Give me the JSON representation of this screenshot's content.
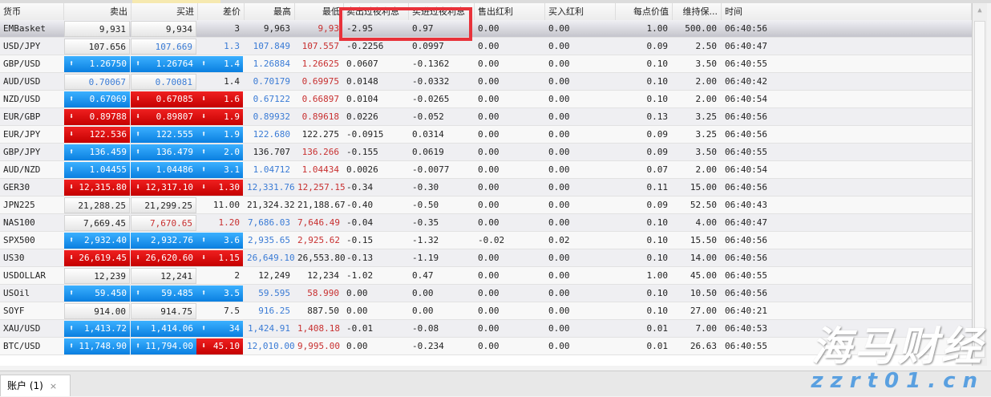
{
  "columns": [
    "货币",
    "卖出",
    "买进",
    "差价",
    "最高",
    "最低",
    "卖出过夜利息",
    "买进过夜利息",
    "售出红利",
    "买入红利",
    "每点价值",
    "维持保...",
    "时间"
  ],
  "rows": [
    [
      "EMBasket",
      [
        "9,931",
        "n"
      ],
      [
        "9,934",
        "n"
      ],
      [
        "3",
        "k"
      ],
      [
        "9,963",
        "k"
      ],
      [
        "9,93",
        "r"
      ],
      "-2.95",
      "0.97",
      "0.00",
      "0.00",
      "1.00",
      "500.00",
      "06:40:56"
    ],
    [
      "USD/JPY",
      [
        "107.656",
        "n"
      ],
      [
        "107.669",
        "nb"
      ],
      [
        "1.3",
        "b"
      ],
      [
        "107.849",
        "b"
      ],
      [
        "107.557",
        "r"
      ],
      "-0.2256",
      "0.0997",
      "0.00",
      "0.00",
      "0.09",
      "2.50",
      "06:40:47"
    ],
    [
      "GBP/USD",
      [
        "1.26750",
        "u"
      ],
      [
        "1.26764",
        "u"
      ],
      [
        "1.4",
        "u"
      ],
      [
        "1.26884",
        "b"
      ],
      [
        "1.26625",
        "r"
      ],
      "0.0607",
      "-0.1362",
      "0.00",
      "0.00",
      "0.10",
      "3.50",
      "06:40:55"
    ],
    [
      "AUD/USD",
      [
        "0.70067",
        "nb"
      ],
      [
        "0.70081",
        "nb"
      ],
      [
        "1.4",
        "k"
      ],
      [
        "0.70179",
        "b"
      ],
      [
        "0.69975",
        "r"
      ],
      "0.0148",
      "-0.0332",
      "0.00",
      "0.00",
      "0.10",
      "2.00",
      "06:40:42"
    ],
    [
      "NZD/USD",
      [
        "0.67069",
        "u"
      ],
      [
        "0.67085",
        "d"
      ],
      [
        "1.6",
        "d"
      ],
      [
        "0.67122",
        "b"
      ],
      [
        "0.66897",
        "r"
      ],
      "0.0104",
      "-0.0265",
      "0.00",
      "0.00",
      "0.10",
      "2.00",
      "06:40:54"
    ],
    [
      "EUR/GBP",
      [
        "0.89788",
        "d"
      ],
      [
        "0.89807",
        "d"
      ],
      [
        "1.9",
        "d"
      ],
      [
        "0.89932",
        "b"
      ],
      [
        "0.89618",
        "r"
      ],
      "0.0226",
      "-0.052",
      "0.00",
      "0.00",
      "0.13",
      "3.25",
      "06:40:56"
    ],
    [
      "EUR/JPY",
      [
        "122.536",
        "d"
      ],
      [
        "122.555",
        "u"
      ],
      [
        "1.9",
        "u"
      ],
      [
        "122.680",
        "b"
      ],
      [
        "122.275",
        "k"
      ],
      "-0.0915",
      "0.0314",
      "0.00",
      "0.00",
      "0.09",
      "3.25",
      "06:40:56"
    ],
    [
      "GBP/JPY",
      [
        "136.459",
        "u"
      ],
      [
        "136.479",
        "u"
      ],
      [
        "2.0",
        "u"
      ],
      [
        "136.707",
        "k"
      ],
      [
        "136.266",
        "r"
      ],
      "-0.155",
      "0.0619",
      "0.00",
      "0.00",
      "0.09",
      "3.50",
      "06:40:55"
    ],
    [
      "AUD/NZD",
      [
        "1.04455",
        "u"
      ],
      [
        "1.04486",
        "u"
      ],
      [
        "3.1",
        "u"
      ],
      [
        "1.04712",
        "b"
      ],
      [
        "1.04434",
        "r"
      ],
      "0.0026",
      "-0.0077",
      "0.00",
      "0.00",
      "0.07",
      "2.00",
      "06:40:54"
    ],
    [
      "GER30",
      [
        "12,315.80",
        "d"
      ],
      [
        "12,317.10",
        "d"
      ],
      [
        "1.30",
        "d"
      ],
      [
        "12,331.76",
        "b"
      ],
      [
        "12,257.15",
        "r"
      ],
      "-0.34",
      "-0.30",
      "0.00",
      "0.00",
      "0.11",
      "15.00",
      "06:40:56"
    ],
    [
      "JPN225",
      [
        "21,288.25",
        "n"
      ],
      [
        "21,299.25",
        "n"
      ],
      [
        "11.00",
        "k"
      ],
      [
        "21,324.32",
        "k"
      ],
      [
        "21,188.67",
        "k"
      ],
      "-0.40",
      "-0.50",
      "0.00",
      "0.00",
      "0.09",
      "52.50",
      "06:40:43"
    ],
    [
      "NAS100",
      [
        "7,669.45",
        "n"
      ],
      [
        "7,670.65",
        "nr"
      ],
      [
        "1.20",
        "r"
      ],
      [
        "7,686.03",
        "b"
      ],
      [
        "7,646.49",
        "r"
      ],
      "-0.04",
      "-0.35",
      "0.00",
      "0.00",
      "0.10",
      "4.00",
      "06:40:47"
    ],
    [
      "SPX500",
      [
        "2,932.40",
        "u"
      ],
      [
        "2,932.76",
        "u"
      ],
      [
        "3.6",
        "u"
      ],
      [
        "2,935.65",
        "b"
      ],
      [
        "2,925.62",
        "r"
      ],
      "-0.15",
      "-1.32",
      "-0.02",
      "0.02",
      "0.10",
      "15.50",
      "06:40:56"
    ],
    [
      "US30",
      [
        "26,619.45",
        "d"
      ],
      [
        "26,620.60",
        "d"
      ],
      [
        "1.15",
        "d"
      ],
      [
        "26,649.10",
        "b"
      ],
      [
        "26,553.80",
        "k"
      ],
      "-0.13",
      "-1.19",
      "0.00",
      "0.00",
      "0.10",
      "14.00",
      "06:40:56"
    ],
    [
      "USDOLLAR",
      [
        "12,239",
        "n"
      ],
      [
        "12,241",
        "n"
      ],
      [
        "2",
        "k"
      ],
      [
        "12,249",
        "k"
      ],
      [
        "12,234",
        "k"
      ],
      "-1.02",
      "0.47",
      "0.00",
      "0.00",
      "1.00",
      "45.00",
      "06:40:55"
    ],
    [
      "USOil",
      [
        "59.450",
        "u"
      ],
      [
        "59.485",
        "u"
      ],
      [
        "3.5",
        "u"
      ],
      [
        "59.595",
        "b"
      ],
      [
        "58.990",
        "r"
      ],
      "0.00",
      "0.00",
      "0.00",
      "0.00",
      "0.10",
      "10.50",
      "06:40:56"
    ],
    [
      "SOYF",
      [
        "914.00",
        "n"
      ],
      [
        "914.75",
        "n"
      ],
      [
        "7.5",
        "k"
      ],
      [
        "916.25",
        "b"
      ],
      [
        "887.50",
        "k"
      ],
      "0.00",
      "0.00",
      "0.00",
      "0.00",
      "0.10",
      "27.00",
      "06:40:21"
    ],
    [
      "XAU/USD",
      [
        "1,413.72",
        "u"
      ],
      [
        "1,414.06",
        "u"
      ],
      [
        "34",
        "u"
      ],
      [
        "1,424.91",
        "b"
      ],
      [
        "1,408.18",
        "r"
      ],
      "-0.01",
      "-0.08",
      "0.00",
      "0.00",
      "0.01",
      "7.00",
      "06:40:53"
    ],
    [
      "BTC/USD",
      [
        "11,748.90",
        "u"
      ],
      [
        "11,794.00",
        "u"
      ],
      [
        "45.10",
        "d"
      ],
      [
        "12,010.00",
        "b"
      ],
      [
        "9,995.00",
        "r"
      ],
      "0.00",
      "-0.234",
      "0.00",
      "0.00",
      "0.01",
      "26.63",
      "06:40:55"
    ]
  ],
  "selected_row": 0,
  "highlight_columns": [
    "卖出过夜利息",
    "买进过夜利息"
  ],
  "bottom_tab": {
    "label": "账户 (1)",
    "close": "×"
  },
  "watermark": {
    "brand": "海马财经",
    "url": "zzrt01.cn"
  },
  "colors": {
    "up": "#0a7fe0",
    "down": "#c40000",
    "high_text": "#3a7bd5",
    "low_text": "#c83030",
    "highlight_box": "#e8323a"
  }
}
